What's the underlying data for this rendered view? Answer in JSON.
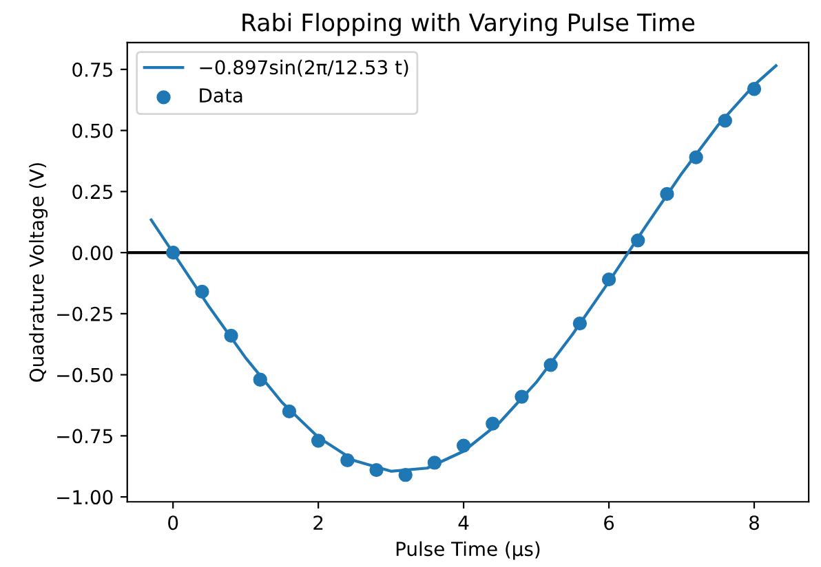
{
  "chart_data": {
    "type": "scatter",
    "title": "Rabi Flopping with Varying Pulse Time",
    "xlabel": "Pulse Time (μs)",
    "ylabel": "Quadrature Voltage (V)",
    "xlim": [
      -0.63,
      8.75
    ],
    "ylim": [
      -1.02,
      0.86
    ],
    "xticks": [
      0,
      2,
      4,
      6,
      8
    ],
    "yticks": [
      {
        "value": -1.0,
        "label": "−1.00"
      },
      {
        "value": -0.75,
        "label": "−0.75"
      },
      {
        "value": -0.5,
        "label": "−0.50"
      },
      {
        "value": -0.25,
        "label": "−0.25"
      },
      {
        "value": 0,
        "label": "0.00"
      },
      {
        "value": 0.25,
        "label": "0.25"
      },
      {
        "value": 0.5,
        "label": "0.50"
      },
      {
        "value": 0.75,
        "label": "0.75"
      }
    ],
    "legend": "top left",
    "grid": false,
    "ref_lines": [
      {
        "axis": "y",
        "value": 0,
        "color": "#000000"
      }
    ],
    "series": [
      {
        "name": "−0.897sin(2π/12.53 t)",
        "type": "line",
        "color": "#1f77b4",
        "x": [
          -0.3,
          0,
          0.5,
          1,
          1.5,
          2,
          2.5,
          3,
          3.5,
          4,
          4.5,
          5,
          5.5,
          6,
          6.5,
          7,
          7.5,
          8,
          8.3
        ],
        "values": [
          0.134,
          0,
          -0.223,
          -0.431,
          -0.613,
          -0.756,
          -0.852,
          -0.895,
          -0.882,
          -0.813,
          -0.694,
          -0.531,
          -0.334,
          -0.119,
          0.105,
          0.323,
          0.521,
          0.686,
          0.765
        ]
      },
      {
        "name": "Data",
        "marker": "circle",
        "color": "#1f77b4",
        "x": [
          0,
          0.4,
          0.8,
          1.2,
          1.6,
          2,
          2.4,
          2.8,
          3.2,
          3.6,
          4,
          4.4,
          4.8,
          5.2,
          5.6,
          6,
          6.4,
          6.8,
          7.2,
          7.6,
          8
        ],
        "values": [
          0,
          -0.16,
          -0.34,
          -0.52,
          -0.65,
          -0.77,
          -0.85,
          -0.89,
          -0.91,
          -0.86,
          -0.79,
          -0.7,
          -0.59,
          -0.46,
          -0.29,
          -0.11,
          0.05,
          0.24,
          0.39,
          0.54,
          0.67
        ]
      }
    ]
  }
}
